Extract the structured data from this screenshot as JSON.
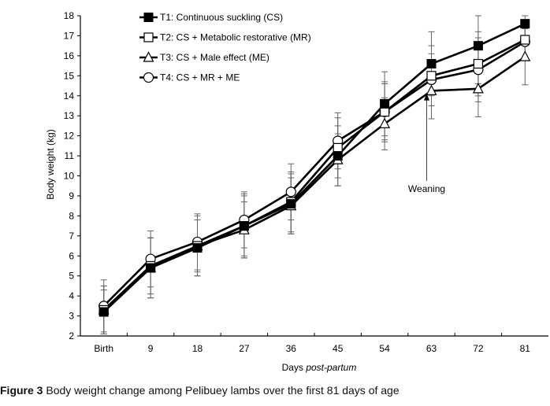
{
  "chart_data": {
    "type": "line",
    "title": "",
    "xlabel_prefix": "Days ",
    "xlabel_italic": "post-partum",
    "ylabel": "Body weight (kg)",
    "ylim": [
      2,
      18
    ],
    "yticks": [
      2,
      3,
      4,
      5,
      6,
      7,
      8,
      9,
      10,
      11,
      12,
      13,
      14,
      15,
      16,
      17,
      18
    ],
    "categories": [
      "Birth",
      "9",
      "18",
      "27",
      "36",
      "45",
      "54",
      "63",
      "72",
      "81"
    ],
    "grid": false,
    "legend_position": "top-left",
    "series": [
      {
        "name": "T1: Continuous suckling (CS)",
        "marker": "filled-square",
        "values": [
          3.2,
          5.4,
          6.4,
          7.5,
          8.6,
          11.0,
          13.6,
          15.6,
          16.5,
          17.6
        ],
        "error": [
          1.1,
          1.5,
          1.4,
          1.6,
          1.5,
          1.5,
          1.6,
          1.6,
          1.9,
          0.9
        ]
      },
      {
        "name": "T2: CS + Metabolic restorative (MR)",
        "marker": "open-square",
        "values": [
          3.3,
          5.5,
          6.5,
          7.5,
          8.7,
          11.4,
          13.2,
          15.0,
          15.6,
          16.8
        ],
        "error": [
          1.2,
          1.4,
          1.3,
          1.5,
          1.5,
          1.5,
          1.5,
          1.5,
          1.6,
          0.9
        ]
      },
      {
        "name": "T3: CS + Male effect (ME)",
        "marker": "open-triangle",
        "values": [
          3.3,
          5.4,
          6.5,
          7.3,
          8.5,
          10.8,
          12.6,
          14.25,
          14.35,
          15.95
        ],
        "error": [
          1.2,
          1.5,
          1.5,
          1.4,
          1.4,
          1.3,
          1.3,
          1.4,
          1.4,
          1.4
        ]
      },
      {
        "name": "T4: CS + MR + ME",
        "marker": "open-circle",
        "values": [
          3.5,
          5.85,
          6.7,
          7.8,
          9.2,
          11.75,
          13.2,
          14.8,
          15.3,
          16.7
        ],
        "error": [
          1.3,
          1.4,
          1.4,
          1.4,
          1.4,
          1.4,
          1.4,
          1.3,
          1.6,
          0.8
        ]
      }
    ],
    "annotations": [
      {
        "text": "Weaning",
        "category": "63",
        "arrow_to_value": 14.2,
        "label_value": 9.2
      }
    ]
  },
  "caption": {
    "label": "Figure 3",
    "text": " Body weight change among Pelibuey lambs over the first 81 days of age"
  }
}
